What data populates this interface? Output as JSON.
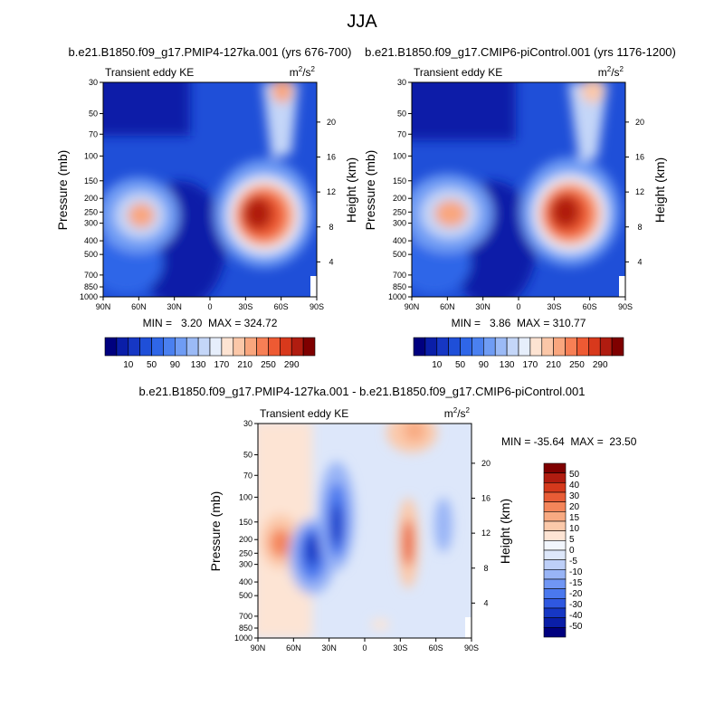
{
  "figure_title": "JJA",
  "colors": {
    "abs_palette": [
      "#00007f",
      "#0a1ea8",
      "#1637c4",
      "#1f4fd8",
      "#2f66e8",
      "#4a80f0",
      "#6f9cf4",
      "#9bbaf6",
      "#c4d6f8",
      "#e6eefb",
      "#fde3d2",
      "#fbc7a8",
      "#f9a67e",
      "#f77f55",
      "#ee5a33",
      "#d8391c",
      "#b01c10",
      "#7f0000"
    ],
    "diff_palette": [
      "#00007f",
      "#0a1ea8",
      "#1637c4",
      "#2f58e0",
      "#4a78ee",
      "#7096f4",
      "#98b4f6",
      "#bdcff8",
      "#dde7fa",
      "#f2f6fd",
      "#fde4d4",
      "#fbc9aa",
      "#f8aa82",
      "#f4855a",
      "#e85c36",
      "#d5391c",
      "#b01c10",
      "#7f0000"
    ]
  },
  "chart_data": [
    {
      "type": "heatmap",
      "title": "b.e21.B1850.f09_g17.PMIP4-127ka.001 (yrs 676-700)",
      "left_label": "Transient eddy KE",
      "units_main": "m",
      "units_sup1": "2",
      "units_mid": "/s",
      "units_sup2": "2",
      "ylabel": "Pressure (mb)",
      "ylabel_right": "Height (km)",
      "x_ticks": [
        "90N",
        "60N",
        "30N",
        "0",
        "30S",
        "60S",
        "90S"
      ],
      "x_tick_values": [
        90,
        60,
        30,
        0,
        -30,
        -60,
        -90
      ],
      "y_ticks": [
        "30",
        "50",
        "70",
        "100",
        "150",
        "200",
        "250",
        "300",
        "400",
        "500",
        "700",
        "850",
        "1000"
      ],
      "y_tick_values": [
        30,
        50,
        70,
        100,
        150,
        200,
        250,
        300,
        400,
        500,
        700,
        850,
        1000
      ],
      "y_log_scale": true,
      "ylim": [
        1000,
        30
      ],
      "height_ticks": [
        "4",
        "8",
        "12",
        "16",
        "20"
      ],
      "height_tick_values": [
        4,
        8,
        12,
        16,
        20
      ],
      "min_max_text": "MIN =   3.20  MAX = 324.72",
      "min": 3.2,
      "max": 324.72,
      "contour_levels": [
        10,
        20,
        30,
        40,
        50,
        60,
        70,
        90,
        110,
        130,
        150,
        170,
        190,
        210,
        230,
        250,
        270,
        290
      ],
      "features": [
        {
          "lat": 90,
          "p": 1000,
          "value": 40,
          "note": "background"
        },
        {
          "lat": -42,
          "p": 270,
          "value": 300,
          "note": "SH jet maximum"
        },
        {
          "lat": 50,
          "p": 240,
          "value": 150,
          "note": "NH maximum"
        },
        {
          "lat": -58,
          "p": 35,
          "value": 170,
          "note": "upper SH maximum"
        },
        {
          "lat": 30,
          "p": 700,
          "value": 12,
          "note": "tropical minimum"
        },
        {
          "lat": 80,
          "p": 40,
          "value": 8,
          "note": "polar minimum"
        }
      ]
    },
    {
      "type": "heatmap",
      "title": "b.e21.B1850.f09_g17.CMIP6-piControl.001 (yrs 1176-1200)",
      "left_label": "Transient eddy KE",
      "units_main": "m",
      "units_sup1": "2",
      "units_mid": "/s",
      "units_sup2": "2",
      "ylabel": "Pressure (mb)",
      "ylabel_right": "Height (km)",
      "x_ticks": [
        "90N",
        "60N",
        "30N",
        "0",
        "30S",
        "60S",
        "90S"
      ],
      "x_tick_values": [
        90,
        60,
        30,
        0,
        -30,
        -60,
        -90
      ],
      "y_ticks": [
        "30",
        "50",
        "70",
        "100",
        "150",
        "200",
        "250",
        "300",
        "400",
        "500",
        "700",
        "850",
        "1000"
      ],
      "y_tick_values": [
        30,
        50,
        70,
        100,
        150,
        200,
        250,
        300,
        400,
        500,
        700,
        850,
        1000
      ],
      "y_log_scale": true,
      "ylim": [
        1000,
        30
      ],
      "height_ticks": [
        "4",
        "8",
        "12",
        "16",
        "20"
      ],
      "height_tick_values": [
        4,
        8,
        12,
        16,
        20
      ],
      "min_max_text": "MIN =   3.86  MAX = 310.77",
      "min": 3.86,
      "max": 310.77,
      "contour_levels": [
        10,
        20,
        30,
        40,
        50,
        60,
        70,
        90,
        110,
        130,
        150,
        170,
        190,
        210,
        230,
        250,
        270,
        290
      ],
      "features": [
        {
          "lat": -38,
          "p": 250,
          "value": 300,
          "note": "SH jet maximum"
        },
        {
          "lat": 55,
          "p": 230,
          "value": 160,
          "note": "NH maximum"
        },
        {
          "lat": -55,
          "p": 33,
          "value": 160,
          "note": "upper SH maximum"
        },
        {
          "lat": 30,
          "p": 700,
          "value": 12,
          "note": "tropical minimum"
        },
        {
          "lat": 80,
          "p": 40,
          "value": 8,
          "note": "polar minimum"
        }
      ]
    },
    {
      "type": "heatmap",
      "title": "b.e21.B1850.f09_g17.PMIP4-127ka.001 - b.e21.B1850.f09_g17.CMIP6-piControl.001",
      "left_label": "Transient eddy KE",
      "units_main": "m",
      "units_sup1": "2",
      "units_mid": "/s",
      "units_sup2": "2",
      "ylabel": "Pressure (mb)",
      "ylabel_right": "Height (km)",
      "x_ticks": [
        "90N",
        "60N",
        "30N",
        "0",
        "30S",
        "60S",
        "90S"
      ],
      "x_tick_values": [
        90,
        60,
        30,
        0,
        -30,
        -60,
        -90
      ],
      "y_ticks": [
        "30",
        "50",
        "70",
        "100",
        "150",
        "200",
        "250",
        "300",
        "400",
        "500",
        "700",
        "850",
        "1000"
      ],
      "y_tick_values": [
        30,
        50,
        70,
        100,
        150,
        200,
        250,
        300,
        400,
        500,
        700,
        850,
        1000
      ],
      "y_log_scale": true,
      "ylim": [
        1000,
        30
      ],
      "height_ticks": [
        "4",
        "8",
        "12",
        "16",
        "20"
      ],
      "height_tick_values": [
        4,
        8,
        12,
        16,
        20
      ],
      "min_max_text": "MIN = -35.64  MAX =  23.50",
      "min": -35.64,
      "max": 23.5,
      "contour_levels": [
        -50,
        -40,
        -30,
        -20,
        -15,
        -10,
        -5,
        0,
        5,
        10,
        15,
        20,
        30,
        40,
        50
      ],
      "features": [
        {
          "lat": 75,
          "p": 200,
          "value": 20,
          "note": "NH positive"
        },
        {
          "lat": 45,
          "p": 250,
          "value": -30,
          "note": "NH negative"
        },
        {
          "lat": 25,
          "p": 140,
          "value": -25,
          "note": "upper negative"
        },
        {
          "lat": -40,
          "p": 200,
          "value": 23,
          "note": "SH jet positive"
        },
        {
          "lat": -50,
          "p": 35,
          "value": 12,
          "note": "upper SH positive"
        }
      ]
    }
  ],
  "colorbar_top": {
    "labels": [
      "10",
      "50",
      "90",
      "130",
      "170",
      "210",
      "250",
      "290"
    ]
  },
  "colorbar_diff": {
    "labels": [
      "50",
      "40",
      "30",
      "20",
      "15",
      "10",
      "5",
      "0",
      "-5",
      "-10",
      "-15",
      "-20",
      "-30",
      "-40",
      "-50"
    ]
  }
}
